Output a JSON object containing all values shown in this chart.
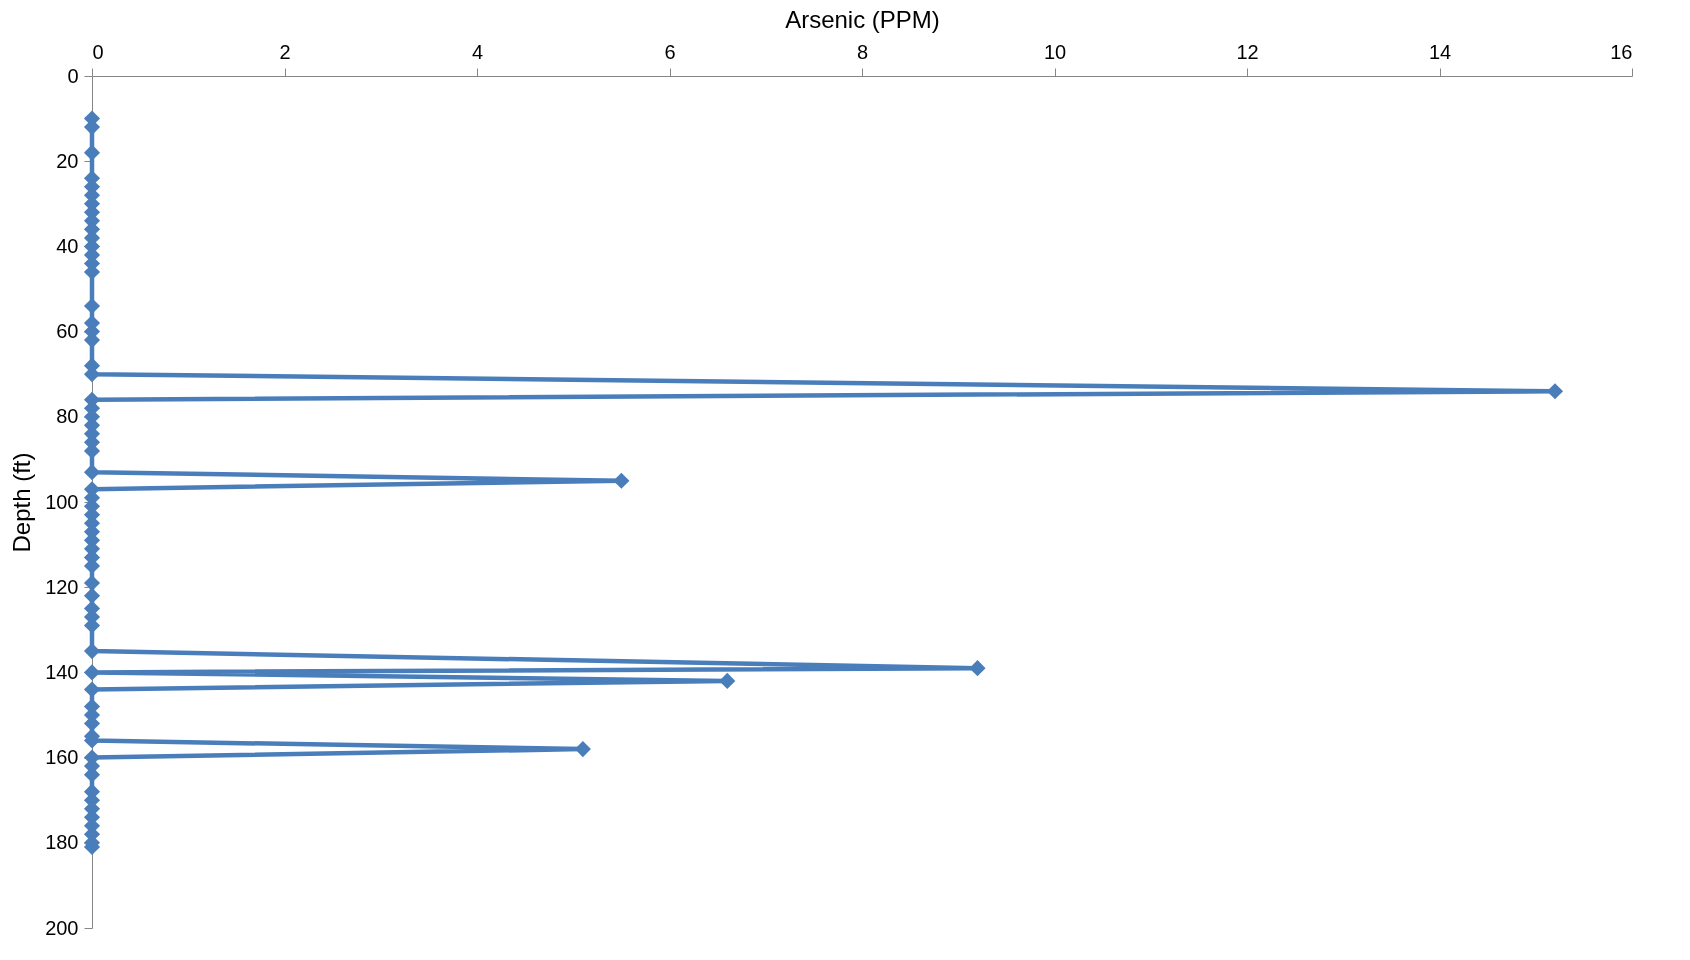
{
  "chart_data": {
    "type": "line",
    "xlabel": "Arsenic (PPM)",
    "ylabel": "Depth (ft)",
    "xlim": [
      0,
      16
    ],
    "xticks": [
      0,
      2,
      4,
      6,
      8,
      10,
      12,
      14,
      16
    ],
    "ylim": [
      200,
      0
    ],
    "yticks": [
      0,
      20,
      40,
      60,
      80,
      100,
      120,
      140,
      160,
      180,
      200
    ],
    "grid": false,
    "legend": false,
    "marker": "diamond",
    "line_style": "solid",
    "series": [
      {
        "color": "#4a7ebb",
        "x": [
          0,
          0,
          0,
          0,
          0,
          0,
          0,
          0,
          0,
          0,
          0,
          0,
          0,
          0,
          0,
          0,
          0,
          0,
          0,
          0,
          0,
          15.2,
          0,
          0,
          0,
          0,
          0,
          0,
          0,
          0,
          5.5,
          0,
          0,
          0,
          0,
          0,
          0,
          0,
          0,
          0,
          0,
          0,
          0,
          0,
          0,
          0,
          0,
          9.2,
          0,
          6.6,
          0,
          0,
          0,
          0,
          0,
          0,
          5.1,
          0,
          0,
          0,
          0,
          0,
          0,
          0,
          0,
          0,
          0,
          0
        ],
        "values": [
          10,
          12,
          18,
          24,
          26,
          28,
          30,
          32,
          34,
          36,
          38,
          40,
          42,
          44,
          46,
          54,
          58,
          60,
          62,
          68,
          70,
          74,
          76,
          78,
          80,
          82,
          84,
          86,
          88,
          93,
          95,
          97,
          99,
          101,
          103,
          105,
          107,
          109,
          111,
          113,
          115,
          119,
          122,
          125,
          127,
          129,
          135,
          139,
          140,
          142,
          144,
          148,
          150,
          152,
          155,
          156,
          158,
          160,
          162,
          164,
          168,
          170,
          172,
          174,
          176,
          178,
          180,
          181
        ]
      }
    ]
  }
}
